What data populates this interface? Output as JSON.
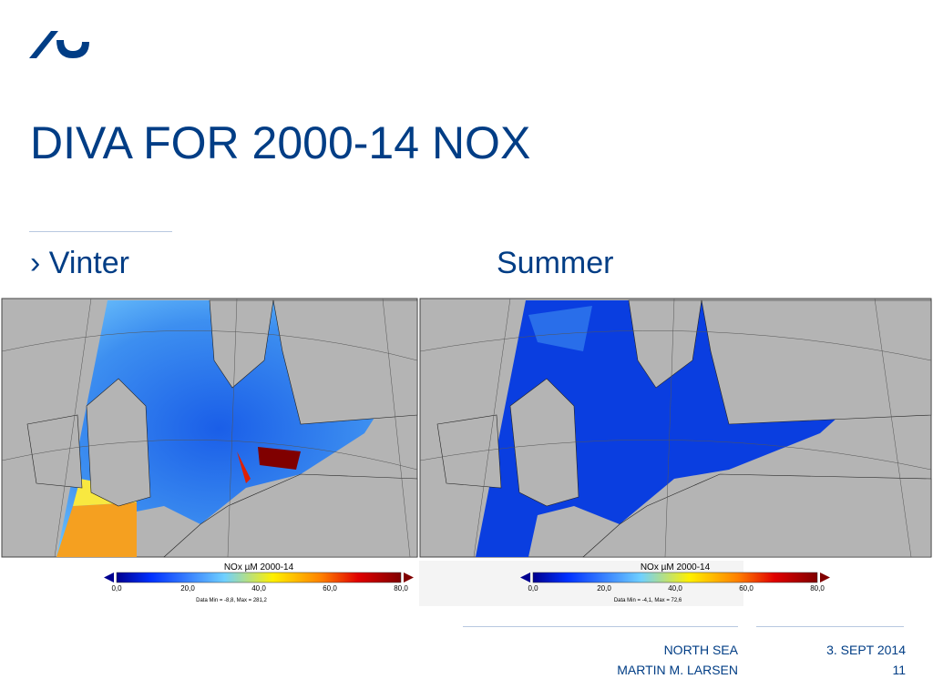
{
  "header": {
    "title": "DIVA FOR 2000-14 NOX"
  },
  "bullet": "›",
  "panels": [
    {
      "label": "Vinter",
      "colorbar": {
        "title": "NOx µM 2000-14",
        "ticks": [
          "0,0",
          "20,0",
          "40,0",
          "60,0",
          "80,0"
        ],
        "stats": "Data Min = -8,8, Max = 281,2"
      }
    },
    {
      "label": "Summer",
      "colorbar": {
        "title": "NOx µM 2000-14",
        "ticks": [
          "0,0",
          "20,0",
          "40,0",
          "60,0",
          "80,0"
        ],
        "stats": "Data Min = -4,1, Max = 72,6"
      }
    }
  ],
  "footer": {
    "left": [
      "NORTH SEA",
      "MARTIN M. LARSEN"
    ],
    "right": [
      "3. SEPT 2014",
      "11"
    ]
  }
}
